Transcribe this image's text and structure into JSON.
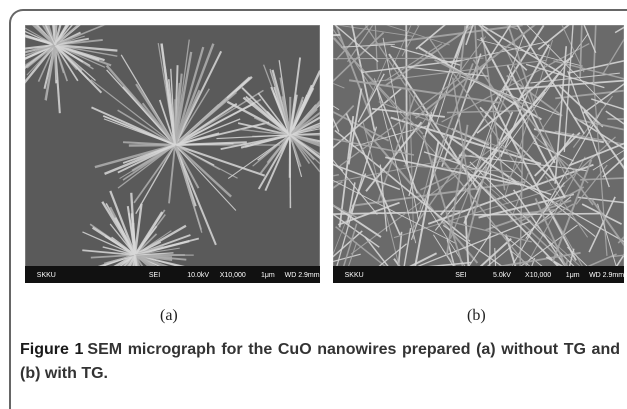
{
  "panels": [
    {
      "label": "(a)",
      "info": [
        "SKKU",
        "SEI",
        "10.0kV",
        "X10,000",
        "1μm",
        "WD 2.9mm"
      ]
    },
    {
      "label": "(b)",
      "info": [
        "SKKU",
        "SEI",
        "5.0kV",
        "X10,000",
        "1μm",
        "WD 2.9mm"
      ]
    }
  ],
  "caption": {
    "label": "Figure 1",
    "text": "SEM micrograph for the CuO nanowires prepared (a) without TG and (b) with TG."
  }
}
